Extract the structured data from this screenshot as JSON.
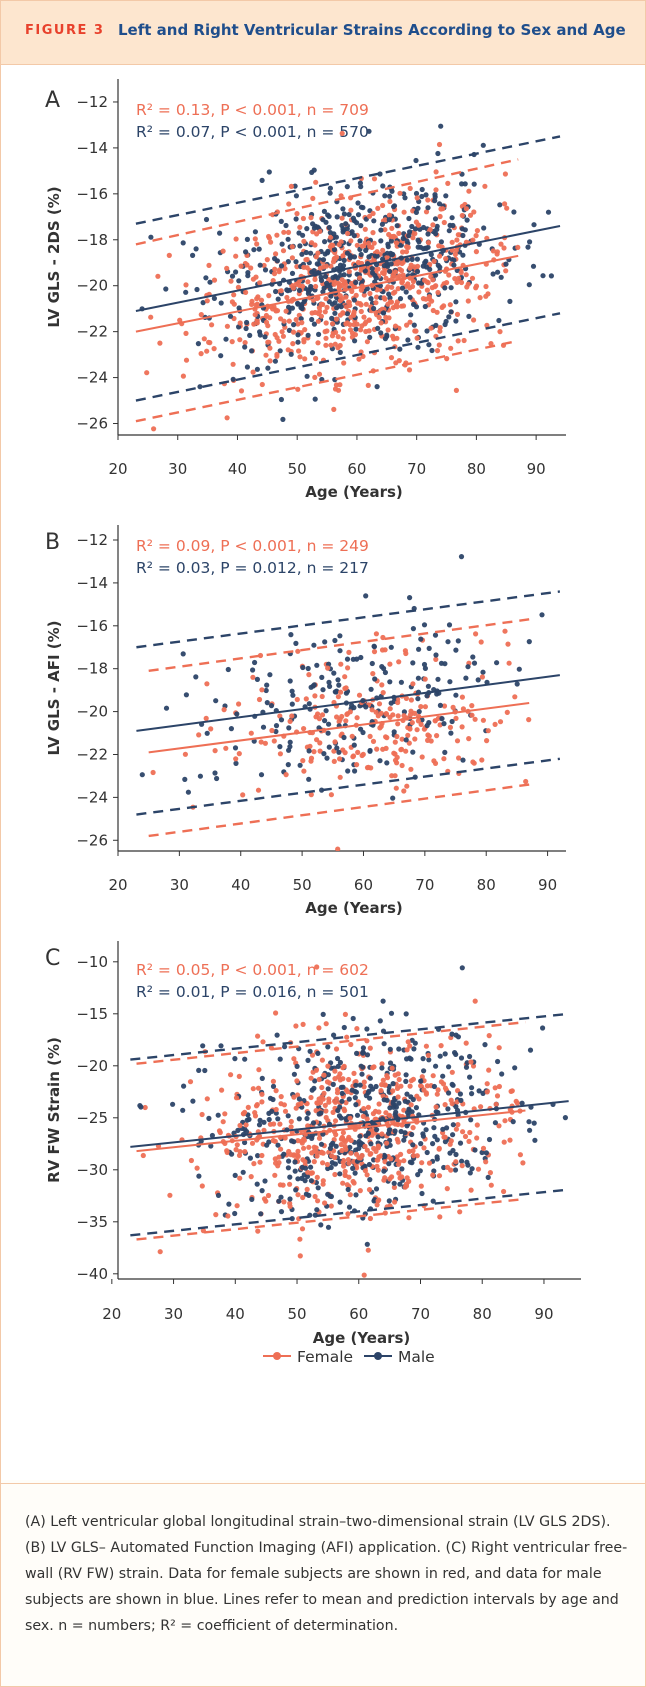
{
  "header": {
    "figure_label": "FIGURE 3",
    "title": "Left and Right Ventricular Strains According to Sex and Age"
  },
  "colors": {
    "female": "#ee6f55",
    "male": "#2c4468",
    "axis": "#333333",
    "header_bg": "#fde6cf",
    "header_text": "#1f4e8c",
    "header_label": "#e8412c"
  },
  "legend": {
    "female": "Female",
    "male": "Male"
  },
  "caption": "(A) Left ventricular global longitudinal strain–two-dimensional strain (LV GLS 2DS). (B) LV GLS– Automated Function Imaging (AFI) application. (C) Right ventricular free-wall (RV FW) strain. Data for female subjects are shown in red, and data for male subjects are shown in blue. Lines refer to mean and prediction intervals by age and sex. n = numbers; R² = coefficient of determination.",
  "chart_data": [
    {
      "panel": "A",
      "type": "scatter",
      "xlabel": "Age (Years)",
      "ylabel": "LV GLS - 2DS (%)",
      "xlim": [
        20,
        95
      ],
      "ylim": [
        -26.5,
        -11
      ],
      "xticks": [
        20,
        30,
        40,
        50,
        60,
        70,
        80,
        90
      ],
      "yticks": [
        -12,
        -14,
        -16,
        -18,
        -20,
        -22,
        -24,
        -26
      ],
      "stats": {
        "female": "R² = 0.13, P < 0.001, n = 709",
        "male": "R² = 0.07, P < 0.001, n = 570"
      },
      "series": [
        {
          "name": "Female",
          "n": 709,
          "age_range": [
            23,
            87
          ],
          "fit": [
            [
              23,
              -22.0
            ],
            [
              87,
              -18.7
            ]
          ],
          "upper": [
            [
              23,
              -18.2
            ],
            [
              87,
              -14.5
            ]
          ],
          "lower": [
            [
              23,
              -25.9
            ],
            [
              87,
              -22.4
            ]
          ],
          "sd": 1.8
        },
        {
          "name": "Male",
          "n": 570,
          "age_range": [
            23,
            94
          ],
          "fit": [
            [
              23,
              -21.1
            ],
            [
              94,
              -17.4
            ]
          ],
          "upper": [
            [
              23,
              -17.3
            ],
            [
              94,
              -13.5
            ]
          ],
          "lower": [
            [
              23,
              -25.0
            ],
            [
              94,
              -21.2
            ]
          ],
          "sd": 1.8
        }
      ]
    },
    {
      "panel": "B",
      "type": "scatter",
      "xlabel": "Age (Years)",
      "ylabel": "LV GLS - AFI (%)",
      "xlim": [
        20,
        93
      ],
      "ylim": [
        -26.5,
        -11.3
      ],
      "xticks": [
        20,
        30,
        40,
        50,
        60,
        70,
        80,
        90
      ],
      "yticks": [
        -12,
        -14,
        -16,
        -18,
        -20,
        -22,
        -24,
        -26
      ],
      "stats": {
        "female": "R² = 0.09, P < 0.001, n = 249",
        "male": "R² = 0.03, P = 0.012, n = 217"
      },
      "series": [
        {
          "name": "Female",
          "n": 249,
          "age_range": [
            25,
            87
          ],
          "fit": [
            [
              25,
              -21.9
            ],
            [
              87,
              -19.6
            ]
          ],
          "upper": [
            [
              25,
              -18.1
            ],
            [
              87,
              -15.7
            ]
          ],
          "lower": [
            [
              25,
              -25.8
            ],
            [
              87,
              -23.4
            ]
          ],
          "sd": 1.8
        },
        {
          "name": "Male",
          "n": 217,
          "age_range": [
            23,
            92
          ],
          "fit": [
            [
              23,
              -20.9
            ],
            [
              92,
              -18.3
            ]
          ],
          "upper": [
            [
              23,
              -17.0
            ],
            [
              92,
              -14.4
            ]
          ],
          "lower": [
            [
              23,
              -24.8
            ],
            [
              92,
              -22.2
            ]
          ],
          "sd": 1.8
        }
      ]
    },
    {
      "panel": "C",
      "type": "scatter",
      "xlabel": "Age (Years)",
      "ylabel": "RV FW Strain (%)",
      "xlim": [
        21,
        96
      ],
      "ylim": [
        -40.5,
        -8
      ],
      "xticks": [
        20,
        30,
        40,
        50,
        60,
        70,
        80,
        90
      ],
      "yticks": [
        -10,
        -15,
        -20,
        -25,
        -30,
        -35,
        -40
      ],
      "stats": {
        "female": "R² = 0.05, P < 0.001, n = 602",
        "male": "R² = 0.01, P = 0.016, n = 501"
      },
      "series": [
        {
          "name": "Female",
          "n": 602,
          "age_range": [
            24,
            87
          ],
          "fit": [
            [
              24,
              -28.2
            ],
            [
              87,
              -24.3
            ]
          ],
          "upper": [
            [
              24,
              -19.8
            ],
            [
              87,
              -15.8
            ]
          ],
          "lower": [
            [
              24,
              -36.7
            ],
            [
              87,
              -32.8
            ]
          ],
          "sd": 4.2
        },
        {
          "name": "Male",
          "n": 501,
          "age_range": [
            23,
            94
          ],
          "fit": [
            [
              23,
              -27.8
            ],
            [
              94,
              -23.4
            ]
          ],
          "upper": [
            [
              23,
              -19.4
            ],
            [
              94,
              -15.0
            ]
          ],
          "lower": [
            [
              23,
              -36.3
            ],
            [
              94,
              -31.9
            ]
          ],
          "sd": 4.2
        }
      ]
    }
  ]
}
